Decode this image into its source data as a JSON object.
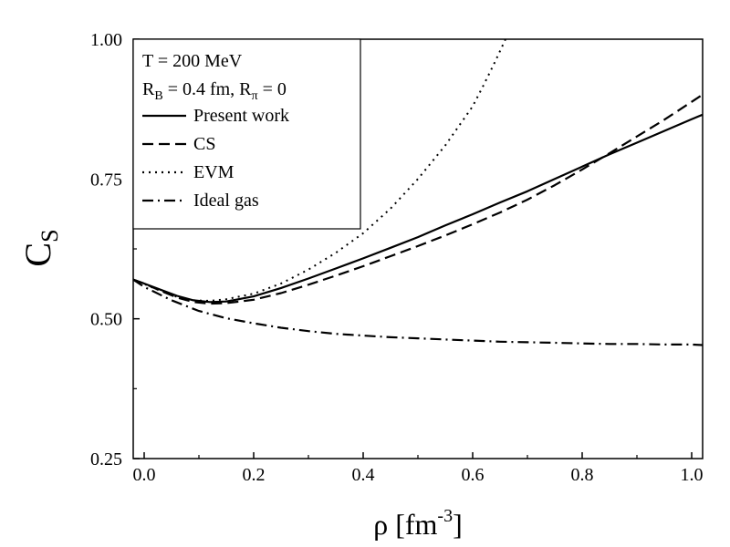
{
  "chart_data": {
    "type": "line",
    "title": "",
    "xlabel": "ρ [fm",
    "xlabel_sup": "-3",
    "xlabel_close": "]",
    "ylabel": "C",
    "ylabel_sub": "S",
    "xlim": [
      -0.02,
      1.02
    ],
    "ylim": [
      0.25,
      1.0
    ],
    "x_ticks": [
      {
        "value": 0.0,
        "label": "0.0"
      },
      {
        "value": 0.2,
        "label": "0.2"
      },
      {
        "value": 0.4,
        "label": "0.4"
      },
      {
        "value": 0.6,
        "label": "0.6"
      },
      {
        "value": 0.8,
        "label": "0.8"
      },
      {
        "value": 1.0,
        "label": "1.0"
      }
    ],
    "y_ticks": [
      {
        "value": 0.25,
        "label": "0.25"
      },
      {
        "value": 0.5,
        "label": "0.50"
      },
      {
        "value": 0.75,
        "label": "0.75"
      },
      {
        "value": 1.0,
        "label": "1.00"
      }
    ],
    "annotation": {
      "line1": "T = 200 MeV",
      "line2_a": "R",
      "line2_a_sub": "B",
      "line2_b": " = 0.4 fm, R",
      "line2_b_sub": "π",
      "line2_c": " = 0"
    },
    "legend_position": "top-left",
    "series": [
      {
        "name": "Present  work",
        "dash": "solid",
        "x": [
          -0.02,
          0.0,
          0.03,
          0.06,
          0.09,
          0.12,
          0.15,
          0.2,
          0.25,
          0.3,
          0.35,
          0.4,
          0.45,
          0.5,
          0.55,
          0.6,
          0.65,
          0.7,
          0.75,
          0.8,
          0.85,
          0.9,
          0.95,
          1.0,
          1.02
        ],
        "y": [
          0.57,
          0.563,
          0.552,
          0.541,
          0.533,
          0.53,
          0.531,
          0.54,
          0.555,
          0.572,
          0.59,
          0.608,
          0.627,
          0.646,
          0.667,
          0.687,
          0.708,
          0.728,
          0.75,
          0.772,
          0.794,
          0.815,
          0.836,
          0.857,
          0.865
        ]
      },
      {
        "name": "CS",
        "dash": "dashed",
        "x": [
          -0.02,
          0.0,
          0.03,
          0.06,
          0.09,
          0.12,
          0.15,
          0.2,
          0.25,
          0.3,
          0.35,
          0.4,
          0.45,
          0.5,
          0.55,
          0.6,
          0.65,
          0.7,
          0.75,
          0.8,
          0.85,
          0.9,
          0.95,
          1.0,
          1.02
        ],
        "y": [
          0.57,
          0.563,
          0.55,
          0.538,
          0.53,
          0.527,
          0.528,
          0.534,
          0.546,
          0.561,
          0.577,
          0.594,
          0.612,
          0.63,
          0.649,
          0.669,
          0.69,
          0.713,
          0.739,
          0.767,
          0.796,
          0.826,
          0.856,
          0.888,
          0.901
        ]
      },
      {
        "name": "EVM",
        "dash": "dotted",
        "x": [
          -0.02,
          0.0,
          0.03,
          0.06,
          0.09,
          0.12,
          0.15,
          0.2,
          0.25,
          0.3,
          0.35,
          0.4,
          0.45,
          0.5,
          0.55,
          0.6,
          0.62,
          0.64,
          0.66
        ],
        "y": [
          0.57,
          0.562,
          0.55,
          0.539,
          0.533,
          0.532,
          0.535,
          0.545,
          0.563,
          0.588,
          0.618,
          0.653,
          0.697,
          0.75,
          0.81,
          0.88,
          0.918,
          0.958,
          1.0
        ]
      },
      {
        "name": "Ideal gas",
        "dash": "dashdot",
        "x": [
          -0.02,
          0.0,
          0.05,
          0.1,
          0.15,
          0.2,
          0.25,
          0.3,
          0.35,
          0.4,
          0.45,
          0.5,
          0.55,
          0.6,
          0.65,
          0.7,
          0.75,
          0.8,
          0.85,
          0.9,
          0.95,
          1.0,
          1.02
        ],
        "y": [
          0.57,
          0.557,
          0.533,
          0.514,
          0.501,
          0.492,
          0.484,
          0.478,
          0.473,
          0.47,
          0.467,
          0.465,
          0.463,
          0.461,
          0.459,
          0.458,
          0.457,
          0.456,
          0.455,
          0.455,
          0.454,
          0.454,
          0.453
        ]
      }
    ]
  }
}
